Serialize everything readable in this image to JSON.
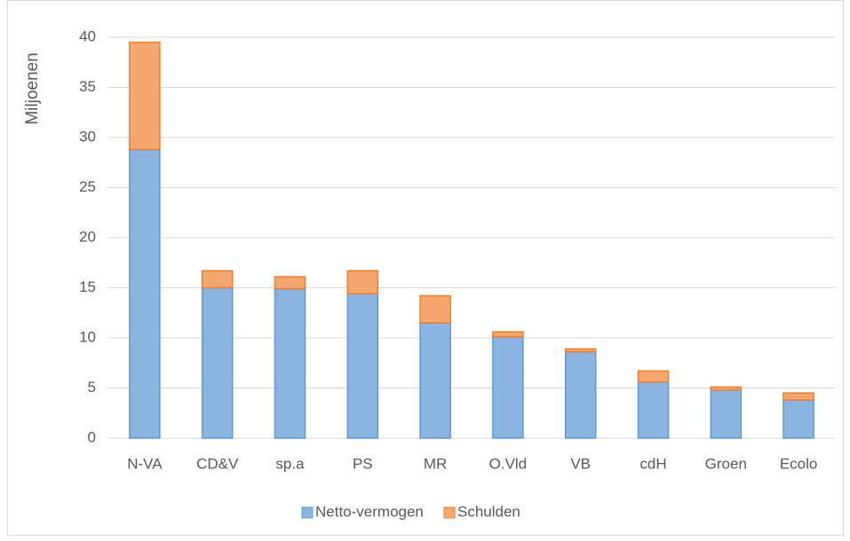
{
  "chart_data": {
    "type": "bar",
    "stacked": true,
    "y_label": "Miljoenen",
    "categories": [
      "N-VA",
      "CD&V",
      "sp.a",
      "PS",
      "MR",
      "O.Vld",
      "VB",
      "cdH",
      "Groen",
      "Ecolo"
    ],
    "series": [
      {
        "name": "Netto-vermogen",
        "color": "#8cb4e0",
        "values": [
          28.8,
          15.0,
          14.9,
          14.4,
          11.5,
          10.1,
          8.6,
          5.6,
          4.8,
          3.8
        ]
      },
      {
        "name": "Schulden",
        "color": "#f4a76f",
        "values": [
          10.7,
          1.7,
          1.2,
          2.3,
          2.7,
          0.5,
          0.3,
          1.1,
          0.3,
          0.7
        ]
      }
    ],
    "ylim": [
      0,
      40
    ],
    "yticks": [
      0,
      5,
      10,
      15,
      20,
      25,
      30,
      35,
      40
    ],
    "grid": true,
    "legend": "bottom"
  }
}
